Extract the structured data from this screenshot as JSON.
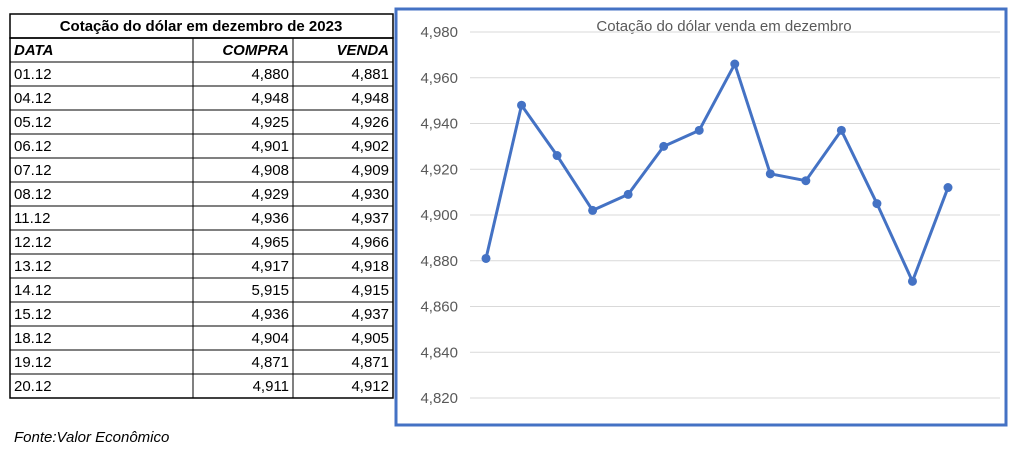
{
  "table": {
    "title": "Cotação do dólar em dezembro de 2023",
    "header": [
      "DATA",
      "COMPRA",
      "VENDA"
    ],
    "rows": [
      [
        "01.12",
        "4,880",
        "4,881"
      ],
      [
        "04.12",
        "4,948",
        "4,948"
      ],
      [
        "05.12",
        "4,925",
        "4,926"
      ],
      [
        "06.12",
        "4,901",
        "4,902"
      ],
      [
        "07.12",
        "4,908",
        "4,909"
      ],
      [
        "08.12",
        "4,929",
        "4,930"
      ],
      [
        "11.12",
        "4,936",
        "4,937"
      ],
      [
        "12.12",
        "4,965",
        "4,966"
      ],
      [
        "13.12",
        "4,917",
        "4,918"
      ],
      [
        "14.12",
        "5,915",
        "4,915"
      ],
      [
        "15.12",
        "4,936",
        "4,937"
      ],
      [
        "18.12",
        "4,904",
        "4,905"
      ],
      [
        "19.12",
        "4,871",
        "4,871"
      ],
      [
        "20.12",
        "4,911",
        "4,912"
      ]
    ]
  },
  "source": "Fonte:Valor Econômico",
  "chart_data": {
    "type": "line",
    "title": "Cotação do dólar venda em dezembro",
    "color": "#4472c4",
    "values": [
      4.881,
      4.948,
      4.926,
      4.902,
      4.909,
      4.93,
      4.937,
      4.966,
      4.918,
      4.915,
      4.937,
      4.905,
      4.871,
      4.912
    ],
    "ylim": [
      4.82,
      4.98
    ],
    "yticks": [
      {
        "value": 4.82,
        "label": "4,820"
      },
      {
        "value": 4.84,
        "label": "4,840"
      },
      {
        "value": 4.86,
        "label": "4,860"
      },
      {
        "value": 4.88,
        "label": "4,880"
      },
      {
        "value": 4.9,
        "label": "4,900"
      },
      {
        "value": 4.92,
        "label": "4,920"
      },
      {
        "value": 4.94,
        "label": "4,940"
      },
      {
        "value": 4.96,
        "label": "4,960"
      },
      {
        "value": 4.98,
        "label": "4,980"
      }
    ],
    "grid": true
  }
}
